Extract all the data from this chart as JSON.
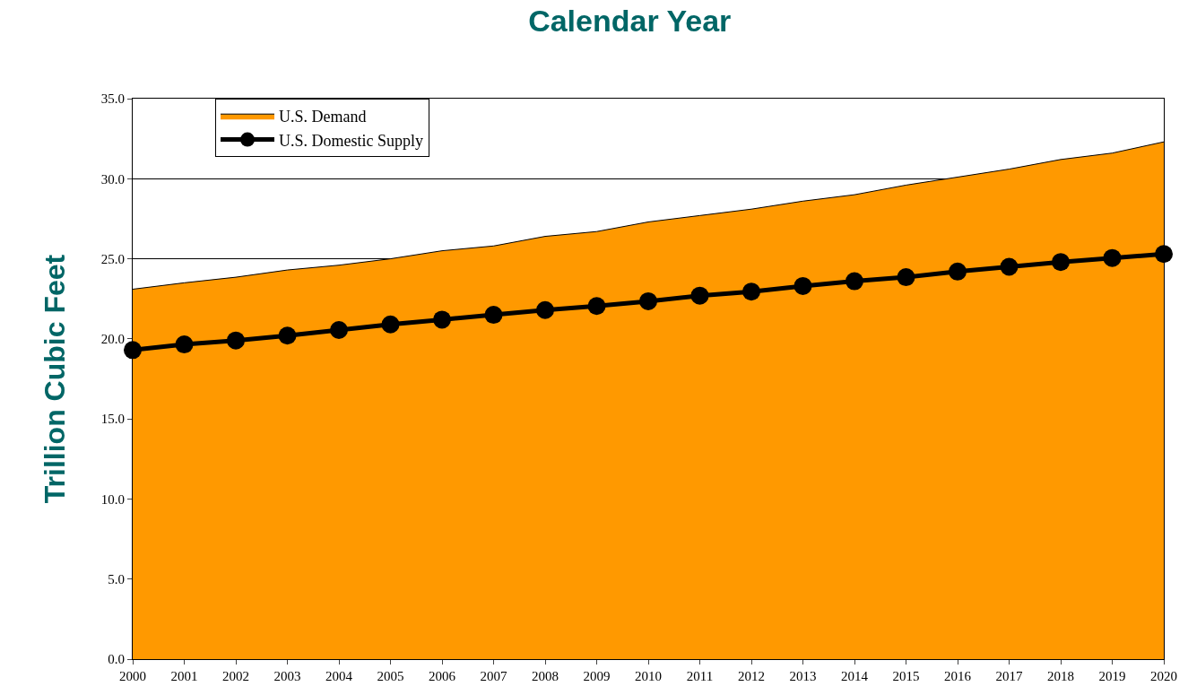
{
  "chart_data": {
    "type": "area",
    "title": "Calendar Year",
    "ylabel": "Trillion Cubic Feet",
    "x": [
      2000,
      2001,
      2002,
      2003,
      2004,
      2005,
      2006,
      2007,
      2008,
      2009,
      2010,
      2011,
      2012,
      2013,
      2014,
      2015,
      2016,
      2017,
      2018,
      2019,
      2020
    ],
    "xlim": [
      2000,
      2020
    ],
    "xticks": [
      2000,
      2001,
      2002,
      2003,
      2004,
      2005,
      2006,
      2007,
      2008,
      2009,
      2010,
      2011,
      2012,
      2013,
      2014,
      2015,
      2016,
      2017,
      2018,
      2019,
      2020
    ],
    "ylim": [
      0,
      35
    ],
    "yticks": [
      {
        "value": 0,
        "label": "0.0"
      },
      {
        "value": 5,
        "label": "5.0"
      },
      {
        "value": 10,
        "label": "10.0"
      },
      {
        "value": 15,
        "label": "15.0"
      },
      {
        "value": 20,
        "label": "20.0"
      },
      {
        "value": 25,
        "label": "25.0"
      },
      {
        "value": 30,
        "label": "30.0"
      },
      {
        "value": 35,
        "label": "35.0"
      }
    ],
    "grid": "y",
    "legend": "top left",
    "series": [
      {
        "name": "U.S. Demand",
        "color": "#ff9900",
        "values": [
          23.1,
          23.5,
          23.85,
          24.3,
          24.6,
          25.0,
          25.5,
          25.8,
          26.4,
          26.7,
          27.3,
          27.7,
          28.1,
          28.6,
          29.0,
          29.6,
          30.1,
          30.6,
          31.2,
          31.6,
          32.3
        ]
      },
      {
        "name": "U.S. Domestic Supply",
        "type": "line",
        "color": "#000000",
        "marker": "circle",
        "line_style": "solid",
        "values": [
          19.3,
          19.65,
          19.9,
          20.2,
          20.55,
          20.9,
          21.2,
          21.5,
          21.8,
          22.05,
          22.35,
          22.7,
          22.95,
          23.3,
          23.6,
          23.85,
          24.2,
          24.5,
          24.8,
          25.05,
          25.3
        ]
      }
    ]
  }
}
